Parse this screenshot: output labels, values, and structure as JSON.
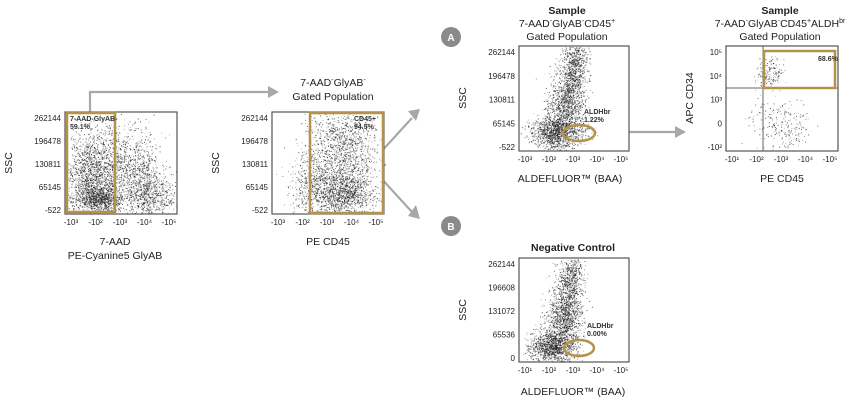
{
  "colors": {
    "gate": "#B5914A",
    "arrow": "#A8A8A8",
    "badge": "#8A8A8A",
    "frame": "#555555",
    "dots": "#1c1c1c"
  },
  "flow": {
    "arrow1_title_line1": "7-AAD",
    "arrow1_title_sup1": "-",
    "arrow1_title_mid": "GlyAB",
    "arrow1_title_sup2": "-",
    "arrow1_title_line2": "Gated Population",
    "badge_a": "A",
    "badge_b": "B"
  },
  "plots": {
    "p1": {
      "yticks": [
        "262144",
        "196478",
        "130811",
        "65145",
        "-522"
      ],
      "xticks": [
        "-10³",
        "-10²",
        "-10³",
        "-10⁴",
        "-10⁵"
      ],
      "ylabel": "SSC",
      "xlabel_line1": "7-AAD",
      "xlabel_line2": "PE-Cyanine5 GlyAB",
      "gate_label": "7-AAD-GlyAB-",
      "gate_value": "59.1%"
    },
    "p2": {
      "yticks": [
        "262144",
        "196478",
        "130811",
        "65145",
        "-522"
      ],
      "xticks": [
        "-10³",
        "-10²",
        "-10³",
        "-10⁴",
        "-10⁵"
      ],
      "ylabel": "SSC",
      "xlabel": "PE CD45",
      "gate_label": "CD45+",
      "gate_value": "94.5%"
    },
    "p3": {
      "title_bold": "Sample",
      "title_line1_a": "7-AAD",
      "title_line1_b": "GlyAB",
      "title_line1_c": "CD45",
      "title_sup1": "-",
      "title_sup2": "-",
      "title_sup3": "+",
      "title_line2": "Gated Population",
      "yticks": [
        "262144",
        "196478",
        "130811",
        "65145",
        "-522"
      ],
      "xticks": [
        "-10³",
        "-10²",
        "-10³",
        "-10⁴",
        "-10⁵"
      ],
      "ylabel": "SSC",
      "xlabel": "ALDEFLUOR™ (BAA)",
      "gate_label": "ALDHbr",
      "gate_value": "1.22%"
    },
    "p4": {
      "title_bold": "Sample",
      "title_line1_a": "7-AAD",
      "title_line1_b": "GlyAB",
      "title_line1_c": "CD45",
      "title_line1_d": "ALDH",
      "title_sup1": "-",
      "title_sup2": "-",
      "title_sup3": "+",
      "title_sup4": "br",
      "title_line2": "Gated Population",
      "yticks": [
        "10⁵",
        "10⁴",
        "10³",
        "0",
        "-10²"
      ],
      "xticks": [
        "-10¹",
        "-10²",
        "-10³",
        "-10⁴",
        "-10⁵"
      ],
      "ylabel": "APC CD34",
      "xlabel": "PE CD45",
      "gate_value": "68.6%"
    },
    "p5": {
      "title_bold": "Negative Control",
      "yticks": [
        "262144",
        "196608",
        "131072",
        "65536",
        "0"
      ],
      "xticks": [
        "-10¹",
        "-10²",
        "-10³",
        "-10⁴",
        "-10⁵"
      ],
      "ylabel": "SSC",
      "xlabel": "ALDEFLUOR™ (BAA)",
      "gate_label": "ALDHbr",
      "gate_value": "0.00%"
    }
  }
}
